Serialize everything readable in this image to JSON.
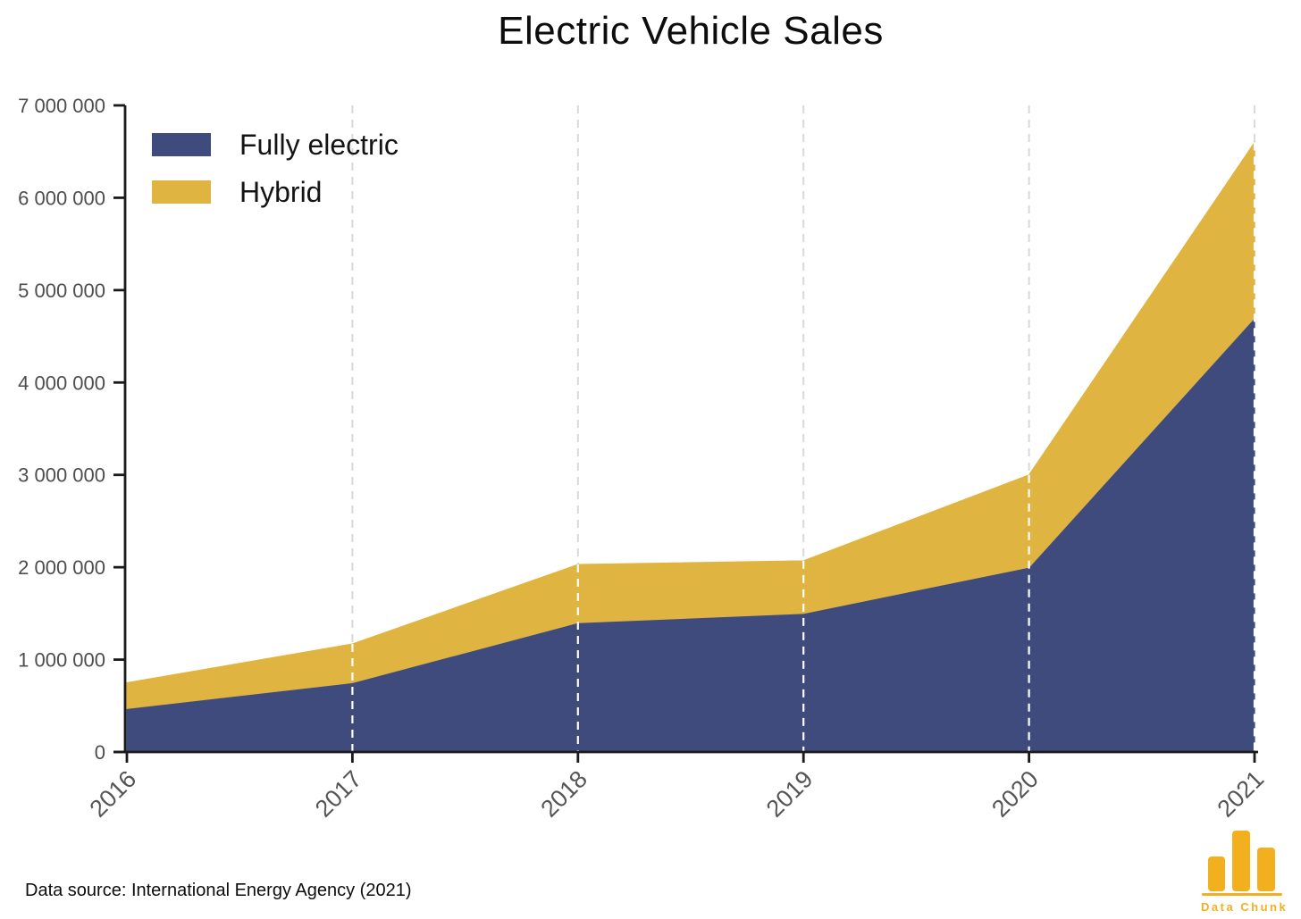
{
  "source_note": "Data source: International Energy Agency (2021)",
  "logo": {
    "text": "Data Chunk",
    "color": "#F2B01E",
    "icon": "bar-chart-logo"
  },
  "chart_data": {
    "type": "area",
    "stacked": true,
    "title": "Electric Vehicle Sales",
    "xlabel": "",
    "ylabel": "",
    "x": [
      2016,
      2017,
      2018,
      2019,
      2020,
      2021
    ],
    "series": [
      {
        "name": "Fully electric",
        "color": "#3E4B7C",
        "values": [
          470000,
          750000,
          1400000,
          1500000,
          2000000,
          4700000
        ]
      },
      {
        "name": "Hybrid",
        "color": "#E0B441",
        "values": [
          280000,
          420000,
          630000,
          570000,
          1000000,
          1900000
        ]
      }
    ],
    "stacked_totals": [
      750000,
      1170000,
      2030000,
      2070000,
      3000000,
      6600000
    ],
    "ylim": [
      0,
      7000000
    ],
    "yticks": [
      0,
      1000000,
      2000000,
      3000000,
      4000000,
      5000000,
      6000000,
      7000000
    ],
    "ytick_labels": [
      "0",
      "1 000 000",
      "2 000 000",
      "3 000 000",
      "4 000 000",
      "5 000 000",
      "6 000 000",
      "7 000 000"
    ],
    "legend_position": "top-left",
    "grid": "vertical-dashed",
    "gridline_color": "#D9D9D9",
    "gridline_overlay_color": "#FFFFFF",
    "axis_color": "#1A1A1A",
    "ytick_label_color": "#4D4D4D",
    "xtick_label_color": "#555555"
  }
}
